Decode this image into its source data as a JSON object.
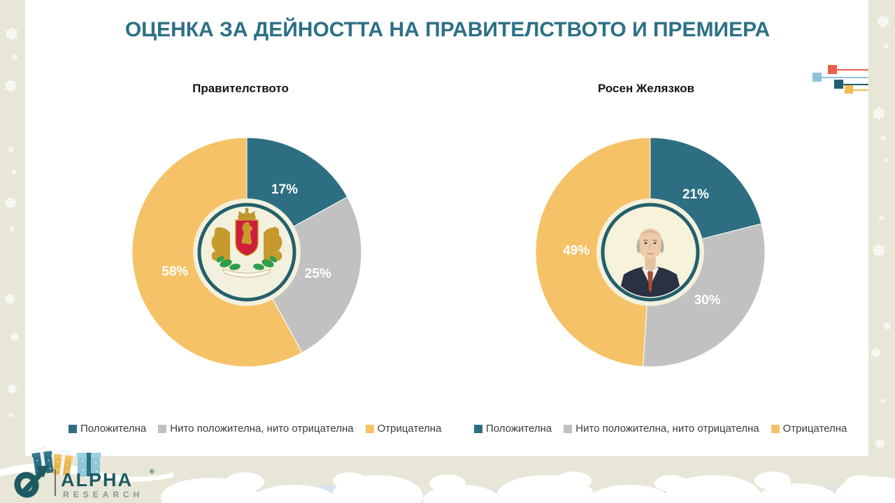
{
  "page": {
    "title": "ОЦЕНКА ЗА ДЕЙНОСТТА НА ПРАВИТЕЛСТВОТО И ПРЕМИЕРА",
    "title_color": "#2d7086"
  },
  "chart_data": [
    {
      "type": "pie",
      "title": "Правителството",
      "labels": [
        "Положителна",
        "Нито положителна, нито отрицателна",
        "Отрицателна"
      ],
      "values": [
        17,
        25,
        58
      ],
      "value_labels": [
        "17%",
        "25%",
        "58%"
      ],
      "colors": [
        "#2e6e83",
        "#c1c1c1",
        "#f6c267"
      ],
      "start_angle_deg": 0,
      "direction": "clockwise",
      "center_graphic": "bulgaria-coat-of-arms",
      "legend_position": "bottom"
    },
    {
      "type": "pie",
      "title": "Росен Желязков",
      "labels": [
        "Положителна",
        "Нито положителна, нито отрицателна",
        "Отрицателна"
      ],
      "values": [
        21,
        30,
        49
      ],
      "value_labels": [
        "21%",
        "30%",
        "49%"
      ],
      "colors": [
        "#2e6e83",
        "#c1c1c1",
        "#f6c267"
      ],
      "start_angle_deg": 0,
      "direction": "clockwise",
      "center_graphic": "rosen-zhelyazkov-portrait",
      "legend_position": "bottom"
    }
  ],
  "legend": {
    "items": [
      {
        "label": "Положителна",
        "color": "#2e6e83"
      },
      {
        "label": "Нито положителна, нито отрицателна",
        "color": "#c1c1c1"
      },
      {
        "label": "Отрицателна",
        "color": "#f6c267"
      }
    ]
  },
  "branding": {
    "logo_text": "ALPHA",
    "logo_subtext": "RESEARCH",
    "registered_mark": "®",
    "logo_color": "#1d5a62",
    "logo_subtext_color": "#8f9494"
  },
  "decorations": {
    "side_panel_color": "#e7e6d7",
    "snowflake_color": "#ffffff",
    "center_ring_color": "#24606b",
    "center_fill_color": "#f3f1de",
    "squares": [
      {
        "name": "red",
        "color": "#e8604c"
      },
      {
        "name": "light-blue",
        "color": "#8ec3da"
      },
      {
        "name": "dark-teal",
        "color": "#205f74"
      },
      {
        "name": "yellow",
        "color": "#f0bd4e"
      }
    ]
  }
}
